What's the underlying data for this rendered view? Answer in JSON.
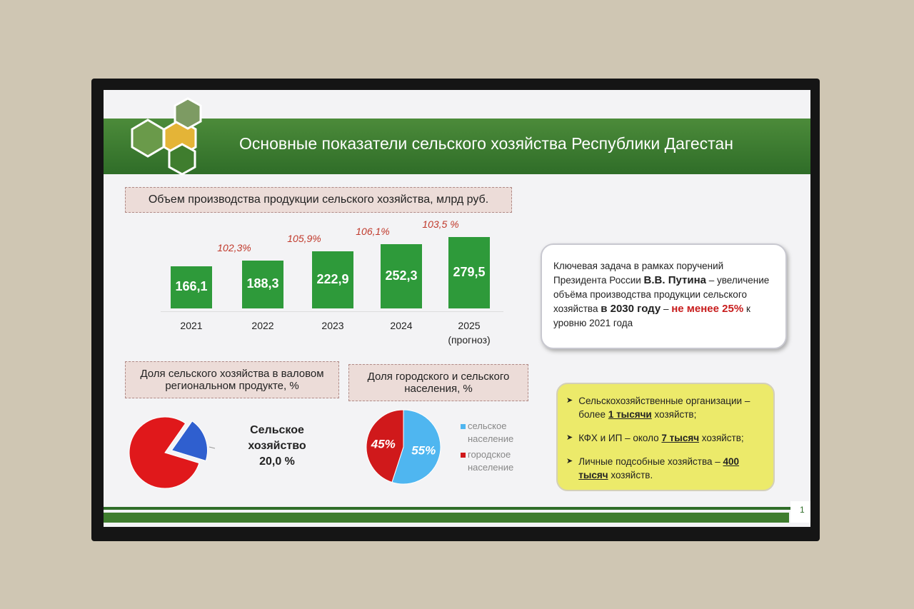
{
  "slide": {
    "title": "Основные показатели сельского хозяйства Республики Дагестан",
    "page_number": "1"
  },
  "chart_data": [
    {
      "type": "bar",
      "title": "Объем производства продукции сельского хозяйства, млрд руб.",
      "categories": [
        "2021",
        "2022",
        "2023",
        "2024",
        "2025 (прогноз)"
      ],
      "values": [
        166.1,
        188.3,
        222.9,
        252.3,
        279.5
      ],
      "value_labels": [
        "166,1",
        "188,3",
        "222,9",
        "252,3",
        "279,5"
      ],
      "annotations": [
        null,
        "102,3%",
        "105,9%",
        "106,1%",
        "103,5 %"
      ],
      "color": "#2e9a3a",
      "annotation_color": "#c0392b"
    },
    {
      "type": "pie",
      "title": "Доля сельского хозяйства в валовом региональном продукте, %",
      "categories": [
        "Сельское хозяйство",
        null
      ],
      "values": [
        20,
        80
      ],
      "value_labels": [
        "20,0 %",
        null
      ],
      "colors": [
        "#2f5fcf",
        "#e0181b"
      ]
    },
    {
      "type": "pie",
      "title": "Доля городского и сельского населения, %",
      "categories": [
        "сельское население",
        "городское население"
      ],
      "values": [
        55,
        45
      ],
      "value_labels": [
        "55%",
        "45%"
      ],
      "colors": [
        "#4fb6f0",
        "#d0191b"
      ],
      "legend": "right"
    }
  ],
  "info_box": {
    "runs": [
      {
        "text": "Ключевая задача в рамках поручений Президента России ",
        "style": "normal"
      },
      {
        "text": "В.В. Путина",
        "style": "bold"
      },
      {
        "text": " – увеличение объёма производства продукции сельского хозяйства ",
        "style": "normal"
      },
      {
        "text": "в 2030 году",
        "style": "bold"
      },
      {
        "text": " – ",
        "style": "normal"
      },
      {
        "text": "не менее 25%",
        "style": "bold-red"
      },
      {
        "text": " к уровню 2021 года",
        "style": "normal"
      }
    ]
  },
  "bullets": [
    {
      "runs": [
        {
          "text": "Сельскохозяйственные организации – более ",
          "style": "normal"
        },
        {
          "text": "1 тысячи",
          "style": "bold-underline"
        },
        {
          "text": " хозяйств;",
          "style": "normal"
        }
      ]
    },
    {
      "runs": [
        {
          "text": "КФХ и ИП – около ",
          "style": "normal"
        },
        {
          "text": "7 тысяч",
          "style": "bold-underline"
        },
        {
          "text": " хозяйств;",
          "style": "normal"
        }
      ]
    },
    {
      "runs": [
        {
          "text": "Личные подсобные хозяйства – ",
          "style": "normal"
        },
        {
          "text": "400 тысяч",
          "style": "bold-underline"
        },
        {
          "text": " хозяйств.",
          "style": "normal"
        }
      ]
    }
  ]
}
